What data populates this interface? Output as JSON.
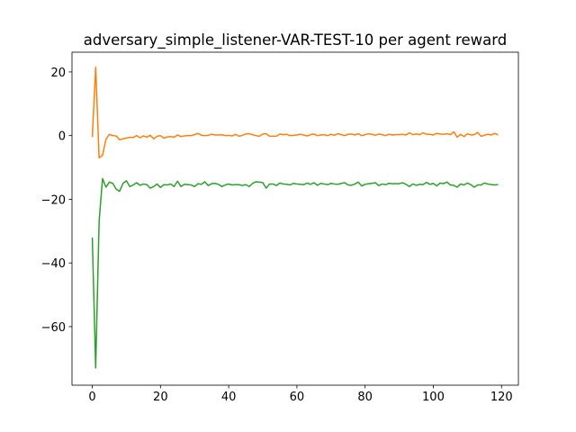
{
  "chart_data": {
    "type": "line",
    "title": "adversary_simple_listener-VAR-TEST-10 per agent reward",
    "x": [
      0,
      1,
      2,
      3,
      4,
      5,
      6,
      7,
      8,
      9,
      10,
      11,
      12,
      13,
      14,
      15,
      16,
      17,
      18,
      19,
      20,
      21,
      22,
      23,
      24,
      25,
      26,
      27,
      28,
      29,
      30,
      31,
      32,
      33,
      34,
      35,
      36,
      37,
      38,
      39,
      40,
      41,
      42,
      43,
      44,
      45,
      46,
      47,
      48,
      49,
      50,
      51,
      52,
      53,
      54,
      55,
      56,
      57,
      58,
      59,
      60,
      61,
      62,
      63,
      64,
      65,
      66,
      67,
      68,
      69,
      70,
      71,
      72,
      73,
      74,
      75,
      76,
      77,
      78,
      79,
      80,
      81,
      82,
      83,
      84,
      85,
      86,
      87,
      88,
      89,
      90,
      91,
      92,
      93,
      94,
      95,
      96,
      97,
      98,
      99,
      100,
      101,
      102,
      103,
      104,
      105,
      106,
      107,
      108,
      109,
      110,
      111,
      112,
      113,
      114,
      115,
      116,
      117,
      118,
      119
    ],
    "series": [
      {
        "color": "#ff7f0e",
        "values": [
          -0.5,
          21.5,
          -7,
          -6.2,
          -1.2,
          0.4,
          0,
          -0.1,
          -1.3,
          -1,
          -0.8,
          -0.5,
          -0.6,
          0,
          -0.7,
          -0.1,
          -0.5,
          0.1,
          -1,
          -0.2,
          0,
          -0.8,
          -0.4,
          -0.3,
          -0.5,
          0.2,
          -0.3,
          -0.1,
          0,
          0,
          0.3,
          0.7,
          0.1,
          0,
          0.1,
          0.4,
          0.2,
          0.2,
          0.3,
          0,
          0.1,
          -0.1,
          0.4,
          -0.2,
          0.1,
          0.5,
          0.6,
          0.3,
          0,
          -0.2,
          0.5,
          0.6,
          -0.2,
          -0.2,
          -0.2,
          0.5,
          0.3,
          0.4,
          0,
          0.1,
          0.2,
          0.4,
          0.2,
          -0.1,
          0.3,
          0.5,
          0,
          0.2,
          0.3,
          0,
          0.4,
          0.1,
          0.6,
          0.3,
          0,
          0.4,
          0.5,
          0.2,
          0.6,
          0,
          0.3,
          0.6,
          0.4,
          0.1,
          0.5,
          0.3,
          0,
          0.4,
          0.2,
          0.3,
          0.3,
          0.4,
          0.2,
          0.9,
          0.3,
          0.5,
          0.3,
          0.9,
          0.4,
          0.4,
          0.2,
          0.7,
          0.5,
          0.4,
          0.6,
          0.3,
          1.2,
          -0.5,
          0.4,
          -0.3,
          0.6,
          0.2,
          0.3,
          1,
          -0.2,
          0.1,
          0.4,
          0.2,
          0.7,
          0.2
        ]
      },
      {
        "color": "#2ca02c",
        "values": [
          -32,
          -73,
          -27,
          -13.5,
          -16.2,
          -14.6,
          -15,
          -16.8,
          -17.5,
          -15,
          -14.2,
          -16,
          -15.5,
          -14.8,
          -15.6,
          -15.2,
          -15.4,
          -16.5,
          -16,
          -15.2,
          -16.3,
          -15.4,
          -15.5,
          -15.2,
          -16,
          -14.3,
          -16,
          -15.3,
          -15.4,
          -15.5,
          -16,
          -15.1,
          -15.3,
          -14.5,
          -15.7,
          -15.1,
          -15,
          -15.3,
          -16,
          -15.5,
          -15.2,
          -15.5,
          -15.4,
          -15.4,
          -15.7,
          -15.4,
          -16,
          -15,
          -14.5,
          -14.6,
          -14.8,
          -16.5,
          -15.2,
          -15.2,
          -15.7,
          -14.9,
          -15.2,
          -15.3,
          -15.5,
          -15,
          -15.2,
          -15.3,
          -15.4,
          -14.9,
          -15.3,
          -14.8,
          -15.6,
          -15,
          -15.2,
          -15.4,
          -15,
          -15.2,
          -15.3,
          -15,
          -14.8,
          -15.5,
          -15.6,
          -15.2,
          -14.6,
          -15.8,
          -15.3,
          -15.1,
          -15,
          -14.8,
          -15.7,
          -15.2,
          -15.4,
          -15,
          -15.1,
          -15.1,
          -15.1,
          -14.8,
          -15.3,
          -16,
          -15.2,
          -15.6,
          -15.3,
          -15.4,
          -14.7,
          -15.3,
          -15,
          -15.8,
          -14.9,
          -15.1,
          -14.6,
          -15.5,
          -15.6,
          -16.2,
          -15.2,
          -15.5,
          -14.9,
          -15.4,
          -16.2,
          -15.5,
          -15.5,
          -14.9,
          -15.2,
          -15.4,
          -15.5,
          -15.4
        ]
      }
    ],
    "xlim": [
      -5.95,
      124.95
    ],
    "xticks": [
      0,
      20,
      40,
      60,
      80,
      100,
      120
    ],
    "ylim": [
      -78.4,
      26.2
    ],
    "yticks": [
      {
        "value": -60,
        "label": "−60"
      },
      {
        "value": -40,
        "label": "−40"
      },
      {
        "value": -20,
        "label": "−20"
      },
      {
        "value": 0,
        "label": "0"
      },
      {
        "value": 20,
        "label": "20"
      }
    ]
  }
}
